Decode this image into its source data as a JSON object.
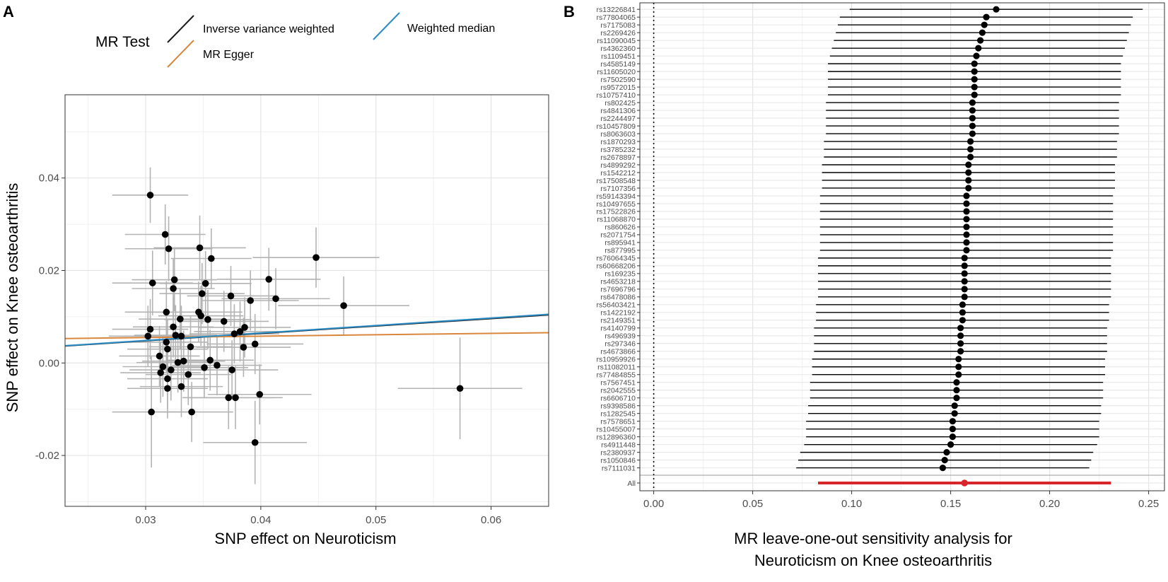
{
  "chart_data": [
    {
      "panel": "A",
      "type": "scatter",
      "xlabel": "SNP effect on Neuroticism",
      "ylabel": "SNP effect on Knee osteoarthritis",
      "xlim": [
        0.023,
        0.065
      ],
      "ylim": [
        -0.031,
        0.058
      ],
      "xticks": [
        0.03,
        0.04,
        0.05,
        0.06
      ],
      "xtick_labels": [
        "0.03",
        "0.04",
        "0.05",
        "0.06"
      ],
      "yticks": [
        -0.02,
        0.0,
        0.02,
        0.04
      ],
      "ytick_labels": [
        "-0.02",
        "0.00",
        "0.02",
        "0.04"
      ],
      "legend": {
        "title": "MR Test",
        "entries": [
          {
            "label": "Inverse variance weighted",
            "color": "#1a1a1a"
          },
          {
            "label": "MR Egger",
            "color": "#d8873c"
          },
          {
            "label": "Weighted median",
            "color": "#2b8cc4"
          }
        ]
      },
      "lines": [
        {
          "name": "Inverse variance weighted",
          "color": "#1a1a1a",
          "intercept": 0.0,
          "slope": 0.16
        },
        {
          "name": "MR Egger",
          "color": "#d8873c",
          "intercept": 0.0046,
          "slope": 0.03
        },
        {
          "name": "Weighted median",
          "color": "#2b8cc4",
          "intercept": 0.0,
          "slope": 0.162
        }
      ],
      "points": [
        {
          "x": 0.0304,
          "y": 0.0363,
          "sx": 0.0033,
          "sy": 0.006
        },
        {
          "x": 0.0317,
          "y": 0.0278,
          "sx": 0.0035,
          "sy": 0.0065
        },
        {
          "x": 0.032,
          "y": 0.0247,
          "sx": 0.0038,
          "sy": 0.007
        },
        {
          "x": 0.0347,
          "y": 0.0249,
          "sx": 0.004,
          "sy": 0.007
        },
        {
          "x": 0.0357,
          "y": 0.0226,
          "sx": 0.0035,
          "sy": 0.0065
        },
        {
          "x": 0.0448,
          "y": 0.0228,
          "sx": 0.0055,
          "sy": 0.0065
        },
        {
          "x": 0.0306,
          "y": 0.0173,
          "sx": 0.0035,
          "sy": 0.007
        },
        {
          "x": 0.0325,
          "y": 0.018,
          "sx": 0.0037,
          "sy": 0.0068
        },
        {
          "x": 0.0352,
          "y": 0.0172,
          "sx": 0.004,
          "sy": 0.007
        },
        {
          "x": 0.0324,
          "y": 0.0161,
          "sx": 0.0036,
          "sy": 0.0065
        },
        {
          "x": 0.0349,
          "y": 0.015,
          "sx": 0.0037,
          "sy": 0.0066
        },
        {
          "x": 0.0374,
          "y": 0.0145,
          "sx": 0.0038,
          "sy": 0.0065
        },
        {
          "x": 0.0407,
          "y": 0.0181,
          "sx": 0.0045,
          "sy": 0.0068
        },
        {
          "x": 0.0413,
          "y": 0.0139,
          "sx": 0.0047,
          "sy": 0.0066
        },
        {
          "x": 0.0391,
          "y": 0.0135,
          "sx": 0.0042,
          "sy": 0.0065
        },
        {
          "x": 0.0472,
          "y": 0.0124,
          "sx": 0.0057,
          "sy": 0.0063
        },
        {
          "x": 0.0318,
          "y": 0.011,
          "sx": 0.0036,
          "sy": 0.0067
        },
        {
          "x": 0.0346,
          "y": 0.011,
          "sx": 0.0038,
          "sy": 0.0066
        },
        {
          "x": 0.0348,
          "y": 0.0102,
          "sx": 0.0037,
          "sy": 0.0065
        },
        {
          "x": 0.033,
          "y": 0.0095,
          "sx": 0.0036,
          "sy": 0.0065
        },
        {
          "x": 0.0354,
          "y": 0.0094,
          "sx": 0.0038,
          "sy": 0.0064
        },
        {
          "x": 0.0368,
          "y": 0.009,
          "sx": 0.0039,
          "sy": 0.0066
        },
        {
          "x": 0.0304,
          "y": 0.0073,
          "sx": 0.0033,
          "sy": 0.0065
        },
        {
          "x": 0.0324,
          "y": 0.0078,
          "sx": 0.0035,
          "sy": 0.0066
        },
        {
          "x": 0.0386,
          "y": 0.0077,
          "sx": 0.004,
          "sy": 0.0065
        },
        {
          "x": 0.0382,
          "y": 0.0068,
          "sx": 0.004,
          "sy": 0.0065
        },
        {
          "x": 0.0377,
          "y": 0.0063,
          "sx": 0.0039,
          "sy": 0.0064
        },
        {
          "x": 0.0302,
          "y": 0.0058,
          "sx": 0.0034,
          "sy": 0.0066
        },
        {
          "x": 0.0326,
          "y": 0.006,
          "sx": 0.0036,
          "sy": 0.0065
        },
        {
          "x": 0.0331,
          "y": 0.0058,
          "sx": 0.0036,
          "sy": 0.0066
        },
        {
          "x": 0.0395,
          "y": 0.0041,
          "sx": 0.0042,
          "sy": 0.0065
        },
        {
          "x": 0.0385,
          "y": 0.0034,
          "sx": 0.0041,
          "sy": 0.0064
        },
        {
          "x": 0.0339,
          "y": 0.0035,
          "sx": 0.0036,
          "sy": 0.0066
        },
        {
          "x": 0.0318,
          "y": 0.0045,
          "sx": 0.0036,
          "sy": 0.0065
        },
        {
          "x": 0.0319,
          "y": 0.003,
          "sx": 0.0035,
          "sy": 0.0066
        },
        {
          "x": 0.0312,
          "y": 0.0015,
          "sx": 0.0035,
          "sy": 0.0065
        },
        {
          "x": 0.0356,
          "y": 0.0006,
          "sx": 0.0038,
          "sy": 0.0066
        },
        {
          "x": 0.0328,
          "y": 0.0001,
          "sx": 0.0036,
          "sy": 0.0065
        },
        {
          "x": 0.0333,
          "y": 0.0004,
          "sx": 0.0036,
          "sy": 0.0066
        },
        {
          "x": 0.0315,
          "y": -0.0008,
          "sx": 0.0035,
          "sy": 0.0065
        },
        {
          "x": 0.0351,
          "y": -0.001,
          "sx": 0.0038,
          "sy": 0.0066
        },
        {
          "x": 0.0362,
          "y": -0.0005,
          "sx": 0.0039,
          "sy": 0.0065
        },
        {
          "x": 0.0375,
          "y": -0.0015,
          "sx": 0.004,
          "sy": 0.0064
        },
        {
          "x": 0.0322,
          "y": -0.0015,
          "sx": 0.0036,
          "sy": 0.0066
        },
        {
          "x": 0.0313,
          "y": -0.0021,
          "sx": 0.0035,
          "sy": 0.0065
        },
        {
          "x": 0.0337,
          "y": -0.0025,
          "sx": 0.0037,
          "sy": 0.0066
        },
        {
          "x": 0.0319,
          "y": -0.0034,
          "sx": 0.0035,
          "sy": 0.0065
        },
        {
          "x": 0.0331,
          "y": -0.0051,
          "sx": 0.0036,
          "sy": 0.0066
        },
        {
          "x": 0.0319,
          "y": -0.0055,
          "sx": 0.0035,
          "sy": 0.0065
        },
        {
          "x": 0.0399,
          "y": -0.0068,
          "sx": 0.0045,
          "sy": 0.0065
        },
        {
          "x": 0.0372,
          "y": -0.0075,
          "sx": 0.004,
          "sy": 0.0068
        },
        {
          "x": 0.0378,
          "y": -0.0075,
          "sx": 0.0041,
          "sy": 0.0068
        },
        {
          "x": 0.0573,
          "y": -0.0055,
          "sx": 0.0054,
          "sy": 0.011
        },
        {
          "x": 0.0305,
          "y": -0.0106,
          "sx": 0.0034,
          "sy": 0.012
        },
        {
          "x": 0.034,
          "y": -0.0106,
          "sx": 0.0036,
          "sy": 0.0065
        },
        {
          "x": 0.0395,
          "y": -0.0172,
          "sx": 0.0045,
          "sy": 0.009
        }
      ]
    },
    {
      "panel": "B",
      "type": "forest",
      "xlabel_lines": [
        "MR leave-one-out sensitivity analysis for",
        "Neuroticism on Knee osteoarthritis"
      ],
      "xlim": [
        -0.007,
        0.258
      ],
      "xticks": [
        0.0,
        0.05,
        0.1,
        0.15,
        0.2,
        0.25
      ],
      "xtick_labels": [
        "0.00",
        "0.05",
        "0.10",
        "0.15",
        "0.20",
        "0.25"
      ],
      "reference_line": 0.0,
      "snps": [
        "rs13226841",
        "rs77804065",
        "rs7175083",
        "rs2269426",
        "rs11090045",
        "rs4362360",
        "rs1109451",
        "rs4585149",
        "rs11605020",
        "rs7502590",
        "rs9572015",
        "rs10757410",
        "rs802425",
        "rs4841306",
        "rs2244497",
        "rs10457809",
        "rs8063603",
        "rs1870293",
        "rs3785232",
        "rs2678897",
        "rs4899292",
        "rs1542212",
        "rs17508548",
        "rs7107356",
        "rs59143394",
        "rs10497655",
        "rs17522826",
        "rs11068870",
        "rs860626",
        "rs2071754",
        "rs895941",
        "rs877995",
        "rs76064345",
        "rs60668206",
        "rs169235",
        "rs4653218",
        "rs7696796",
        "rs6478086",
        "rs56403421",
        "rs1422192",
        "rs2149351",
        "rs4140799",
        "rs496939",
        "rs297346",
        "rs4673866",
        "rs10959926",
        "rs11082011",
        "rs77484855",
        "rs7567451",
        "rs2042555",
        "rs6606710",
        "rs9398586",
        "rs1282545",
        "rs7578651",
        "rs10455007",
        "rs12896360",
        "rs4911448",
        "rs2380937",
        "rs1050846",
        "rs7111031"
      ],
      "estimates": [
        0.173,
        0.168,
        0.167,
        0.166,
        0.165,
        0.164,
        0.163,
        0.162,
        0.162,
        0.162,
        0.162,
        0.162,
        0.161,
        0.161,
        0.161,
        0.161,
        0.161,
        0.16,
        0.16,
        0.16,
        0.159,
        0.159,
        0.159,
        0.159,
        0.158,
        0.158,
        0.158,
        0.158,
        0.158,
        0.158,
        0.158,
        0.158,
        0.157,
        0.157,
        0.157,
        0.157,
        0.157,
        0.157,
        0.156,
        0.156,
        0.156,
        0.155,
        0.155,
        0.155,
        0.155,
        0.154,
        0.154,
        0.154,
        0.153,
        0.153,
        0.153,
        0.152,
        0.152,
        0.151,
        0.151,
        0.151,
        0.15,
        0.148,
        0.147,
        0.146
      ],
      "ci_low": [
        0.099,
        0.094,
        0.093,
        0.092,
        0.091,
        0.09,
        0.089,
        0.088,
        0.088,
        0.088,
        0.088,
        0.088,
        0.087,
        0.087,
        0.087,
        0.087,
        0.087,
        0.086,
        0.086,
        0.086,
        0.085,
        0.085,
        0.085,
        0.085,
        0.084,
        0.084,
        0.084,
        0.084,
        0.084,
        0.084,
        0.084,
        0.084,
        0.083,
        0.083,
        0.083,
        0.083,
        0.083,
        0.083,
        0.082,
        0.082,
        0.082,
        0.081,
        0.081,
        0.081,
        0.081,
        0.08,
        0.08,
        0.08,
        0.079,
        0.079,
        0.079,
        0.078,
        0.078,
        0.077,
        0.077,
        0.077,
        0.076,
        0.074,
        0.073,
        0.072
      ],
      "ci_high": [
        0.247,
        0.242,
        0.241,
        0.24,
        0.239,
        0.238,
        0.237,
        0.236,
        0.236,
        0.236,
        0.236,
        0.236,
        0.235,
        0.235,
        0.235,
        0.235,
        0.235,
        0.234,
        0.234,
        0.234,
        0.233,
        0.233,
        0.233,
        0.233,
        0.232,
        0.232,
        0.232,
        0.232,
        0.232,
        0.232,
        0.232,
        0.232,
        0.231,
        0.231,
        0.231,
        0.231,
        0.231,
        0.231,
        0.23,
        0.23,
        0.23,
        0.229,
        0.229,
        0.229,
        0.229,
        0.228,
        0.228,
        0.228,
        0.227,
        0.227,
        0.227,
        0.226,
        0.226,
        0.225,
        0.225,
        0.225,
        0.224,
        0.222,
        0.221,
        0.22
      ],
      "all": {
        "label": "All",
        "estimate": 0.157,
        "ci_low": 0.083,
        "ci_high": 0.231,
        "color": "#d7262b"
      }
    }
  ]
}
